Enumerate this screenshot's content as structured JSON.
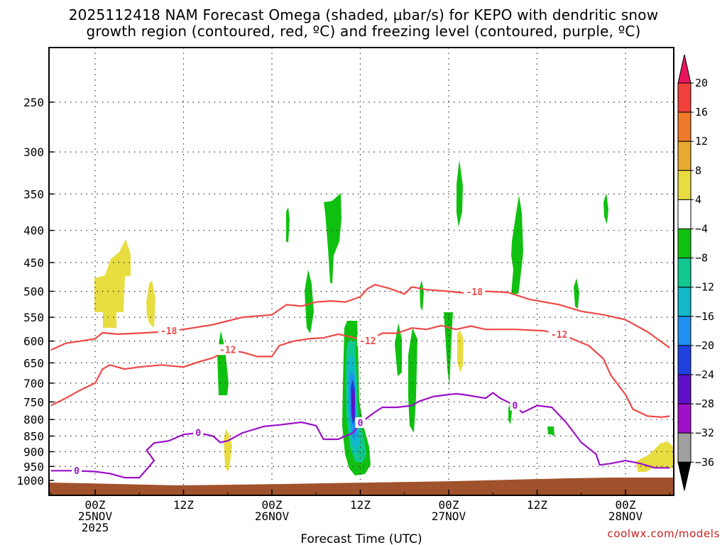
{
  "title_line1": "2025112418 NAM Forecast Omega (shaded, μbar/s) for KEPO with dendritic snow",
  "title_line2": "growth region (contoured, red, ºC) and freezing level (contoured, purple, ºC)",
  "credit": "coolwx.com/models",
  "chart_data": {
    "type": "heatmap",
    "title": "2025112418 NAM Forecast Omega (shaded, μbar/s) for KEPO with dendritic snow growth region (contoured, red, ºC) and freezing level (contoured, purple, ºC)",
    "xlabel": "Forecast Time (UTC)",
    "ylabel": "",
    "x_range_hours": [
      -6,
      78
    ],
    "y_axis": "pressure (mb, log scale)",
    "ylim": [
      1000,
      200
    ],
    "y_ticks": [
      250,
      300,
      350,
      400,
      450,
      500,
      550,
      600,
      650,
      700,
      750,
      800,
      850,
      900,
      950,
      1000
    ],
    "x_ticks": [
      {
        "hour": 0,
        "line1": "00Z",
        "line2": "25NOV",
        "line3": "2025"
      },
      {
        "hour": 12,
        "line1": "12Z",
        "line2": "",
        "line3": ""
      },
      {
        "hour": 24,
        "line1": "00Z",
        "line2": "26NOV",
        "line3": ""
      },
      {
        "hour": 36,
        "line1": "12Z",
        "line2": "",
        "line3": ""
      },
      {
        "hour": 48,
        "line1": "00Z",
        "line2": "27NOV",
        "line3": ""
      },
      {
        "hour": 60,
        "line1": "12Z",
        "line2": "",
        "line3": ""
      },
      {
        "hour": 72,
        "line1": "00Z",
        "line2": "28NOV",
        "line3": ""
      }
    ],
    "grid": true,
    "colorbar": {
      "labels": [
        "20",
        "16",
        "12",
        "8",
        "4",
        "−4",
        "−8",
        "−12",
        "−16",
        "−20",
        "−24",
        "−28",
        "−32",
        "−36"
      ],
      "colors": [
        "#e8175d",
        "#f2403c",
        "#f07a2a",
        "#e6aa30",
        "#e8dd40",
        "#ffffff",
        "#10c010",
        "#10c890",
        "#10b8c8",
        "#2090f0",
        "#2040e0",
        "#6010c8",
        "#a010c8",
        "#a0a0a0",
        "#000000"
      ]
    },
    "contours": {
      "dendritic_minus18": {
        "label": "-18",
        "color": "#f04848",
        "points": [
          [
            -6,
            620
          ],
          [
            -4,
            605
          ],
          [
            -2,
            600
          ],
          [
            0,
            595
          ],
          [
            1,
            582
          ],
          [
            3,
            585
          ],
          [
            6,
            583
          ],
          [
            9,
            580
          ],
          [
            12,
            575
          ],
          [
            16,
            565
          ],
          [
            20,
            550
          ],
          [
            24,
            545
          ],
          [
            26,
            525
          ],
          [
            28,
            528
          ],
          [
            30,
            520
          ],
          [
            32,
            518
          ],
          [
            34,
            520
          ],
          [
            36,
            510
          ],
          [
            37,
            495
          ],
          [
            38,
            488
          ],
          [
            40,
            495
          ],
          [
            42,
            505
          ],
          [
            43,
            492
          ],
          [
            45,
            497
          ],
          [
            48,
            500
          ],
          [
            50,
            503
          ],
          [
            53,
            500
          ],
          [
            56,
            502
          ],
          [
            59,
            515
          ],
          [
            63,
            525
          ],
          [
            66,
            538
          ],
          [
            69,
            545
          ],
          [
            72,
            555
          ],
          [
            75,
            580
          ],
          [
            78,
            615
          ]
        ]
      },
      "dendritic_minus12": {
        "label": "-12",
        "color": "#f04848",
        "points": [
          [
            -6,
            760
          ],
          [
            -4,
            740
          ],
          [
            -2,
            718
          ],
          [
            0,
            700
          ],
          [
            1,
            665
          ],
          [
            2,
            655
          ],
          [
            4,
            665
          ],
          [
            6,
            660
          ],
          [
            9,
            655
          ],
          [
            12,
            660
          ],
          [
            14,
            648
          ],
          [
            16,
            638
          ],
          [
            18,
            620
          ],
          [
            20,
            625
          ],
          [
            22,
            635
          ],
          [
            24,
            635
          ],
          [
            25,
            610
          ],
          [
            27,
            600
          ],
          [
            29,
            595
          ],
          [
            31,
            593
          ],
          [
            33,
            585
          ],
          [
            35,
            592
          ],
          [
            37,
            600
          ],
          [
            39,
            583
          ],
          [
            41,
            583
          ],
          [
            43,
            572
          ],
          [
            45,
            575
          ],
          [
            47,
            567
          ],
          [
            49,
            575
          ],
          [
            51,
            568
          ],
          [
            53,
            575
          ],
          [
            57,
            575
          ],
          [
            61,
            578
          ],
          [
            64,
            590
          ],
          [
            67,
            610
          ],
          [
            69,
            640
          ],
          [
            70,
            680
          ],
          [
            72,
            730
          ],
          [
            73,
            770
          ],
          [
            75,
            790
          ],
          [
            77,
            793
          ],
          [
            78,
            790
          ]
        ]
      },
      "freezing_0": {
        "label": "0",
        "color": "#9b10c8",
        "points": [
          [
            -6,
            965
          ],
          [
            -3,
            965
          ],
          [
            0,
            968
          ],
          [
            2,
            975
          ],
          [
            4,
            990
          ],
          [
            6,
            990
          ],
          [
            7,
            960
          ],
          [
            8,
            930
          ],
          [
            7,
            895
          ],
          [
            8,
            872
          ],
          [
            10,
            865
          ],
          [
            12,
            845
          ],
          [
            14,
            840
          ],
          [
            16,
            850
          ],
          [
            17,
            870
          ],
          [
            18,
            865
          ],
          [
            20,
            840
          ],
          [
            23,
            820
          ],
          [
            25,
            816
          ],
          [
            28,
            808
          ],
          [
            30,
            818
          ],
          [
            31,
            860
          ],
          [
            33,
            860
          ],
          [
            35,
            840
          ],
          [
            36,
            810
          ],
          [
            38,
            778
          ],
          [
            39,
            765
          ],
          [
            41,
            765
          ],
          [
            43,
            760
          ],
          [
            44,
            748
          ],
          [
            46,
            735
          ],
          [
            48,
            730
          ],
          [
            49,
            728
          ],
          [
            50,
            730
          ],
          [
            53,
            740
          ],
          [
            54,
            725
          ],
          [
            55,
            740
          ],
          [
            57,
            760
          ],
          [
            58,
            780
          ],
          [
            60,
            760
          ],
          [
            62,
            765
          ],
          [
            64,
            810
          ],
          [
            66,
            870
          ],
          [
            68,
            908
          ],
          [
            68.5,
            945
          ],
          [
            70,
            940
          ],
          [
            72,
            930
          ],
          [
            74,
            940
          ],
          [
            76,
            955
          ],
          [
            78,
            955
          ]
        ]
      }
    }
  }
}
